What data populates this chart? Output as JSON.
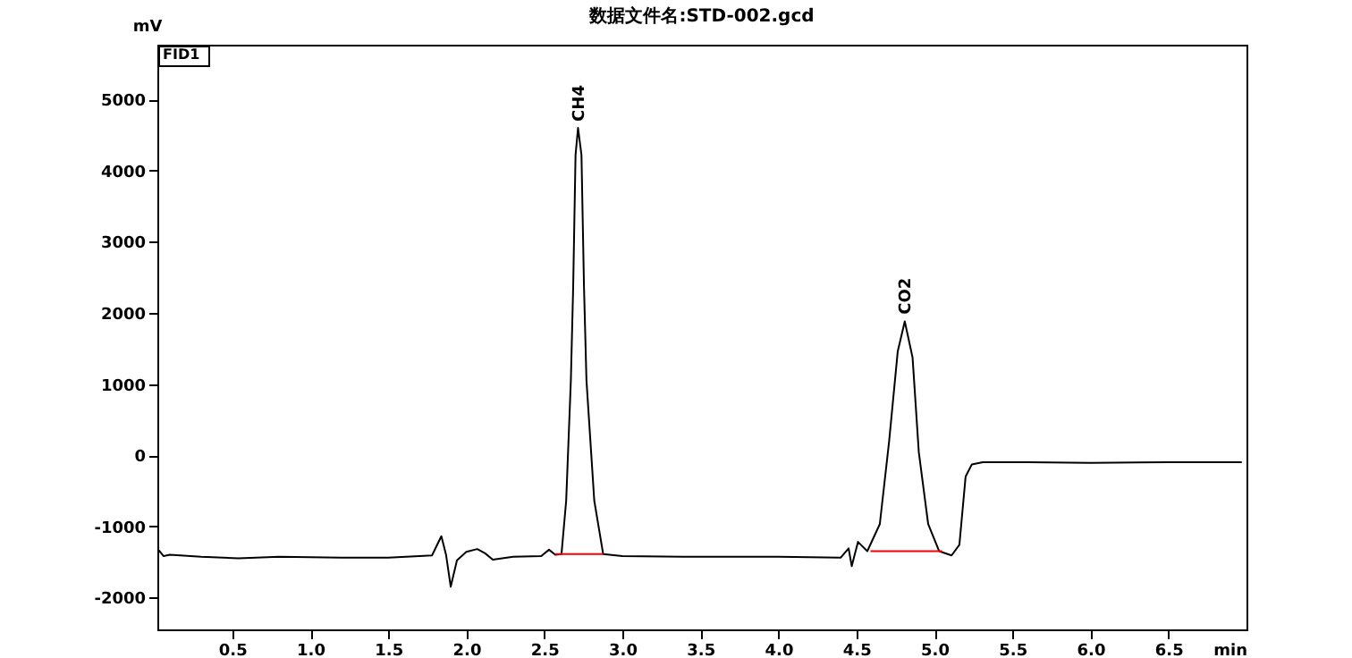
{
  "chart_data": {
    "type": "line",
    "title": "数据文件名:STD-002.gcd",
    "xlabel": "min",
    "ylabel": "mV",
    "xlim": [
      0.02,
      7
    ],
    "ylim": [
      -2450,
      5770
    ],
    "xticks": [
      0.5,
      {
        "value": 1,
        "label": "1.0"
      },
      1.5,
      {
        "value": 2,
        "label": "2.0"
      },
      2.5,
      {
        "value": 3,
        "label": "3.0"
      },
      3.5,
      {
        "value": 4,
        "label": "4.0"
      },
      4.5,
      {
        "value": 5,
        "label": "5.0"
      },
      5.5,
      {
        "value": 6,
        "label": "6.0"
      },
      6.5
    ],
    "yticks": [
      -2000,
      -1000,
      0,
      1000,
      2000,
      3000,
      4000,
      5000
    ],
    "grid": false,
    "annotations": [
      "FID1",
      {
        "text": "CH4",
        "x": 2.72,
        "y": 4590
      },
      {
        "text": "CO2",
        "x": 4.81,
        "y": 1877
      }
    ],
    "series": [
      {
        "color": "#000000",
        "x": [
          0.02,
          0.03,
          0.06,
          0.1,
          0.3,
          0.54,
          0.8,
          1.2,
          1.5,
          1.7,
          1.78,
          1.84,
          1.87,
          1.9,
          1.94,
          2.0,
          2.07,
          2.12,
          2.17,
          2.3,
          2.48,
          2.53,
          2.57,
          2.61,
          2.64,
          2.67,
          2.685,
          2.7,
          2.716,
          2.738,
          2.754,
          2.77,
          2.82,
          2.877,
          3.0,
          3.5,
          4.0,
          4.4,
          4.45,
          4.47,
          4.51,
          4.57,
          4.65,
          4.71,
          4.765,
          4.81,
          4.86,
          4.9,
          4.96,
          5.03,
          5.11,
          5.16,
          5.2,
          5.24,
          5.31,
          5.6,
          6.0,
          6.5,
          6.97
        ],
        "values": [
          -1420,
          -1340,
          -1420,
          -1400,
          -1430,
          -1450,
          -1430,
          -1440,
          -1440,
          -1420,
          -1410,
          -1140,
          -1400,
          -1850,
          -1480,
          -1360,
          -1320,
          -1380,
          -1470,
          -1430,
          -1420,
          -1330,
          -1400,
          -1390,
          -640,
          1050,
          2380,
          4220,
          4600,
          4220,
          2380,
          1050,
          -640,
          -1390,
          -1420,
          -1430,
          -1430,
          -1440,
          -1310,
          -1560,
          -1220,
          -1350,
          -970,
          200,
          1460,
          1880,
          1370,
          40,
          -970,
          -1350,
          -1410,
          -1260,
          -300,
          -130,
          -100,
          -100,
          -110,
          -100,
          -100
        ]
      },
      {
        "color": "#ff0000",
        "x": [
          2.57,
          2.877
        ],
        "values": [
          -1390,
          -1390
        ]
      },
      {
        "color": "#ff0000",
        "x": [
          4.59,
          5.05
        ],
        "values": [
          -1350,
          -1350
        ]
      }
    ]
  }
}
